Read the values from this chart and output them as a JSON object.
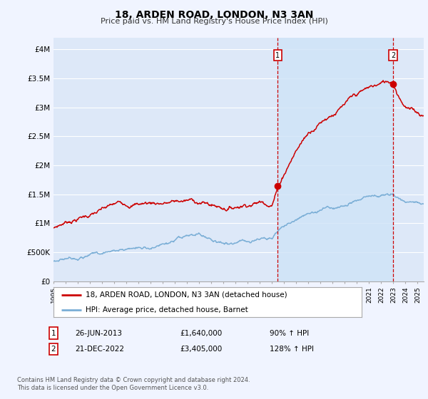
{
  "title": "18, ARDEN ROAD, LONDON, N3 3AN",
  "subtitle": "Price paid vs. HM Land Registry's House Price Index (HPI)",
  "ylim": [
    0,
    4200000
  ],
  "yticks": [
    0,
    500000,
    1000000,
    1500000,
    2000000,
    2500000,
    3000000,
    3500000,
    4000000
  ],
  "ytick_labels": [
    "£0",
    "£500K",
    "£1M",
    "£1.5M",
    "£2M",
    "£2.5M",
    "£3M",
    "£3.5M",
    "£4M"
  ],
  "background_color": "#f0f4ff",
  "plot_background": "#dde8f8",
  "highlight_color": "#d0e4f7",
  "line_color_property": "#cc0000",
  "line_color_hpi": "#7aaed6",
  "vline_color": "#cc0000",
  "sale1_x": 2013.48,
  "sale1_y": 1640000,
  "sale1_date": "26-JUN-2013",
  "sale1_price": "£1,640,000",
  "sale1_pct": "90% ↑ HPI",
  "sale2_x": 2022.97,
  "sale2_y": 3405000,
  "sale2_date": "21-DEC-2022",
  "sale2_price": "£3,405,000",
  "sale2_pct": "128% ↑ HPI",
  "xmin": 1995.0,
  "xmax": 2025.5,
  "legend_property": "18, ARDEN ROAD, LONDON, N3 3AN (detached house)",
  "legend_hpi": "HPI: Average price, detached house, Barnet",
  "footer": "Contains HM Land Registry data © Crown copyright and database right 2024.\nThis data is licensed under the Open Government Licence v3.0."
}
